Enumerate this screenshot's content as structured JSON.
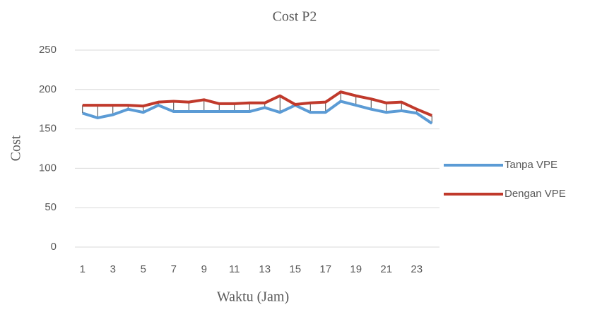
{
  "chart_data": {
    "type": "line",
    "title": "Cost P2",
    "x_label": "Waktu (Jam)",
    "y_label": "Cost",
    "categories": [
      "1",
      null,
      "3",
      null,
      "5",
      null,
      "7",
      null,
      "9",
      null,
      "11",
      null,
      "13",
      null,
      "15",
      null,
      "17",
      null,
      "19",
      null,
      "21",
      null,
      "23",
      null
    ],
    "series": [
      {
        "name": "Tanpa VPE",
        "color": "#5b9bd5",
        "values": [
          170,
          164,
          168,
          175,
          171,
          180,
          172,
          172,
          172,
          172,
          172,
          172,
          177,
          171,
          180,
          171,
          171,
          185,
          180,
          175,
          171,
          173,
          170,
          157
        ]
      },
      {
        "name": "Dengan VPE",
        "color": "#c0392b",
        "values": [
          180,
          180,
          180,
          180,
          179,
          184,
          185,
          184,
          187,
          182,
          182,
          183,
          183,
          192,
          181,
          183,
          184,
          197,
          192,
          188,
          183,
          184,
          175,
          167
        ]
      }
    ],
    "ylim": [
      0,
      250
    ],
    "yticks": [
      0,
      50,
      100,
      150,
      200,
      250
    ],
    "grid": true,
    "legend": "right",
    "hi_lo_lines": true
  }
}
